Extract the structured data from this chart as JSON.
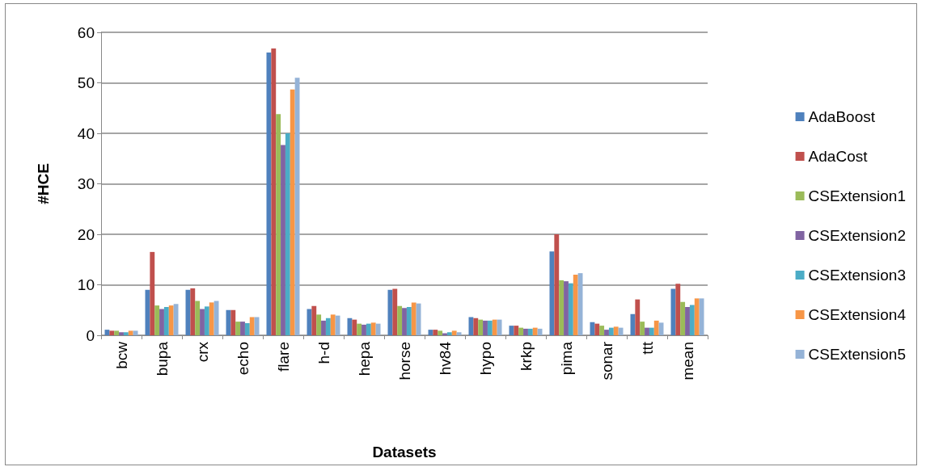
{
  "chart_data": {
    "type": "bar",
    "xlabel": "Datasets",
    "ylabel": "#HCE",
    "categories": [
      "bcw",
      "bupa",
      "crx",
      "echo",
      "flare",
      "h-d",
      "hepa",
      "horse",
      "hv84",
      "hypo",
      "krkp",
      "pima",
      "sonar",
      "ttt",
      "mean"
    ],
    "series": [
      {
        "name": "AdaBoost",
        "color": "#4f81bd",
        "values": [
          1.1,
          9,
          9,
          5,
          56,
          5.2,
          3.4,
          9,
          1.1,
          3.6,
          1.9,
          16.6,
          2.6,
          4.2,
          9.2
        ]
      },
      {
        "name": "AdaCost",
        "color": "#c0504d",
        "values": [
          0.9,
          16.5,
          9.3,
          5,
          56.8,
          5.8,
          3.1,
          9.2,
          1.1,
          3.4,
          1.9,
          20,
          2.3,
          7.1,
          10.2
        ]
      },
      {
        "name": "CSExtension1",
        "color": "#9bbb59",
        "values": [
          0.9,
          5.9,
          6.8,
          2.7,
          43.8,
          4.1,
          2.3,
          5.8,
          0.9,
          3.1,
          1.5,
          10.9,
          1.9,
          2.7,
          6.6
        ]
      },
      {
        "name": "CSExtension2",
        "color": "#8064a2",
        "values": [
          0.6,
          5.2,
          5.2,
          2.7,
          37.7,
          2.9,
          2.1,
          5.4,
          0.4,
          2.9,
          1.3,
          10.7,
          1.1,
          1.5,
          5.6
        ]
      },
      {
        "name": "CSExtension3",
        "color": "#4bacc6",
        "values": [
          0.6,
          5.6,
          5.7,
          2.4,
          40,
          3.4,
          2.3,
          5.6,
          0.6,
          2.9,
          1.3,
          10.3,
          1.5,
          1.5,
          6
        ]
      },
      {
        "name": "CSExtension4",
        "color": "#f79646",
        "values": [
          0.9,
          5.9,
          6.5,
          3.6,
          48.7,
          4.1,
          2.5,
          6.5,
          0.9,
          3.1,
          1.5,
          12,
          1.7,
          2.9,
          7.3
        ]
      },
      {
        "name": "CSExtension5",
        "color": "#95b3d7",
        "values": [
          0.9,
          6.2,
          6.8,
          3.6,
          51,
          3.9,
          2.3,
          6.3,
          0.6,
          3.1,
          1.3,
          12.3,
          1.5,
          2.5,
          7.3
        ]
      }
    ],
    "ylim": [
      0,
      60
    ],
    "yticks": [
      0,
      10,
      20,
      30,
      40,
      50,
      60
    ],
    "grid": "y",
    "legend": "right"
  }
}
